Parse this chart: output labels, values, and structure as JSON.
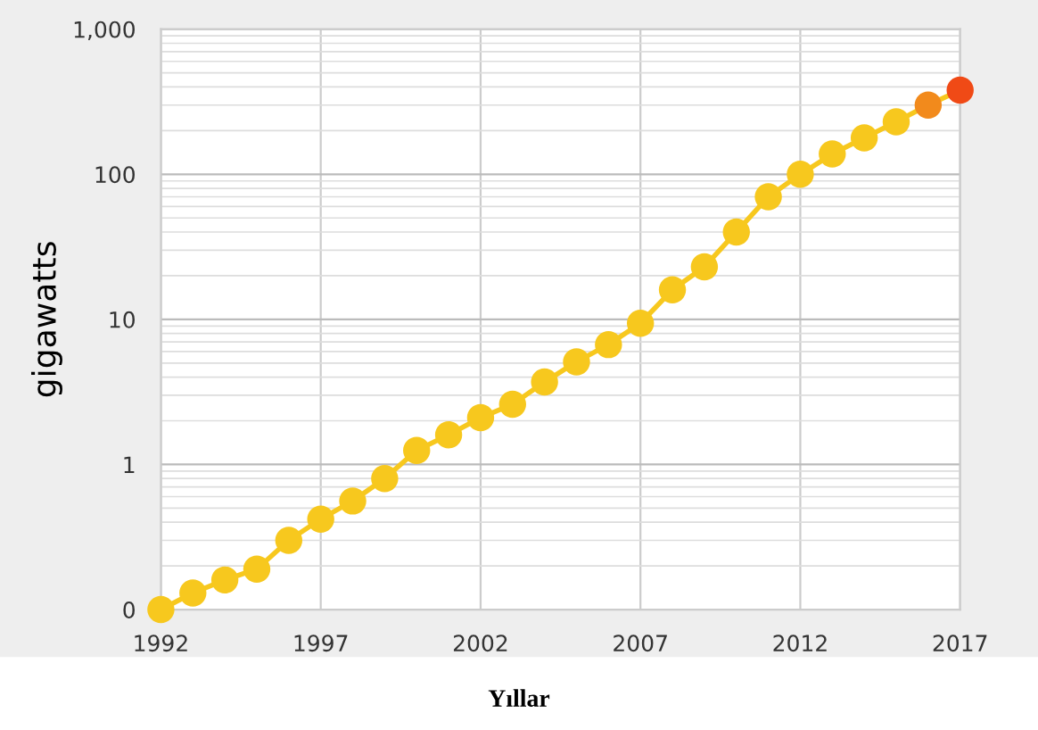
{
  "chart_data": {
    "type": "line",
    "xlabel": "Yıllar",
    "ylabel": "gigawatts",
    "x": [
      1992,
      1993,
      1994,
      1995,
      1996,
      1997,
      1998,
      1999,
      2000,
      2001,
      2002,
      2003,
      2004,
      2005,
      2006,
      2007,
      2008,
      2009,
      2010,
      2011,
      2012,
      2013,
      2014,
      2015,
      2016,
      2017
    ],
    "series": [
      {
        "color": "#f7c81e",
        "colors": [
          "#f7c81e",
          "#f7c81e",
          "#f7c81e",
          "#f7c81e",
          "#f7c81e",
          "#f7c81e",
          "#f7c81e",
          "#f7c81e",
          "#f7c81e",
          "#f7c81e",
          "#f7c81e",
          "#f7c81e",
          "#f7c81e",
          "#f7c81e",
          "#f7c81e",
          "#f7c81e",
          "#f7c81e",
          "#f7c81e",
          "#f7c81e",
          "#f7c81e",
          "#f7c81e",
          "#f7c81e",
          "#f7c81e",
          "#f7c81e",
          "#f28a1c",
          "#f04a16"
        ],
        "values": [
          0.1,
          0.13,
          0.16,
          0.19,
          0.3,
          0.42,
          0.56,
          0.8,
          1.25,
          1.6,
          2.1,
          2.6,
          3.7,
          5.1,
          6.7,
          9.4,
          16,
          23,
          40,
          70,
          100,
          138,
          178,
          230,
          300,
          380
        ]
      }
    ],
    "log": "y",
    "xlim": [
      1992,
      2017
    ],
    "xticks": [
      1992,
      1997,
      2002,
      2007,
      2012,
      2017
    ],
    "ylim": [
      0.1,
      1000
    ],
    "yticks": [
      {
        "value": 0.1,
        "label": "0"
      },
      1,
      10,
      100,
      {
        "value": 1000,
        "label": "1,000"
      }
    ],
    "grid": true,
    "marker": "circle",
    "legend": false
  }
}
